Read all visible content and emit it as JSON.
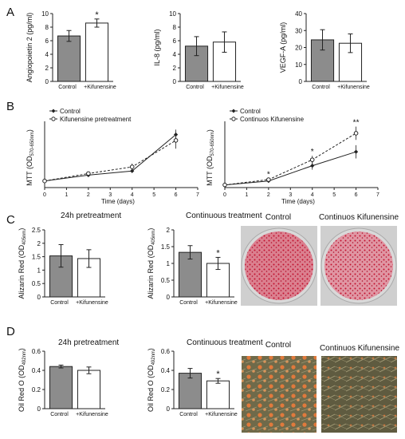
{
  "panels": {
    "A": "A",
    "B": "B",
    "C": "C",
    "D": "D"
  },
  "colors": {
    "control": "#8c8c8c",
    "treated": "#ffffff",
    "axis": "#222222",
    "stain_red": "#c2112f",
    "oil_bg": "#6f6a4a"
  },
  "photos": {
    "C": {
      "left": "Control",
      "right": "Continuos Kifunensine"
    },
    "D": {
      "left": "Control",
      "right": "Continuos Kifunensine"
    }
  },
  "chart_data": [
    {
      "id": "A1",
      "type": "bar",
      "categories": [
        "Control",
        "+Kifunensine"
      ],
      "values": [
        6.7,
        8.6
      ],
      "errors": [
        0.8,
        0.6
      ],
      "ylabel": "Angiopoietin 2 (pg/ml)",
      "ylim": [
        0,
        10
      ],
      "yticks": [
        "0",
        "2",
        "4",
        "6",
        "8",
        "10"
      ],
      "annotations": [
        "",
        "*"
      ]
    },
    {
      "id": "A2",
      "type": "bar",
      "categories": [
        "Control",
        "+Kifunensine"
      ],
      "values": [
        5.2,
        5.8
      ],
      "errors": [
        1.4,
        1.5
      ],
      "ylabel": "IL-8 (pg/ml)",
      "ylim": [
        0,
        10
      ],
      "yticks": [
        "0",
        "2",
        "4",
        "6",
        "8",
        "10"
      ],
      "annotations": [
        "",
        ""
      ]
    },
    {
      "id": "A3",
      "type": "bar",
      "categories": [
        "Control",
        "+Kifunensine"
      ],
      "values": [
        24.5,
        22.5
      ],
      "errors": [
        6,
        5.5
      ],
      "ylabel": "VEGF-A (pg/ml)",
      "ylim": [
        0,
        40
      ],
      "yticks": [
        "0",
        "10",
        "20",
        "30",
        "40"
      ],
      "annotations": [
        "",
        ""
      ]
    },
    {
      "id": "B1",
      "type": "line",
      "xlabel": "Time (days)",
      "ylabel": "MTT (OD570-650nm)",
      "xlim": [
        0,
        7
      ],
      "ylim": [
        0,
        0.4
      ],
      "xticks": [
        "0",
        "1",
        "2",
        "3",
        "4",
        "5",
        "6",
        "7"
      ],
      "series": [
        {
          "name": "Control",
          "x": [
            0,
            2,
            4,
            6
          ],
          "y": [
            0.04,
            0.075,
            0.1,
            0.32
          ],
          "errors": [
            0.005,
            0.01,
            0.01,
            0.03
          ]
        },
        {
          "name": "Kifunensine pretreatment",
          "x": [
            0,
            2,
            4,
            6
          ],
          "y": [
            0.04,
            0.085,
            0.125,
            0.285
          ],
          "errors": [
            0.005,
            0.01,
            0.02,
            0.05
          ]
        }
      ]
    },
    {
      "id": "B2",
      "type": "line",
      "xlabel": "Time (days)",
      "ylabel": "MTT (OD570-650nm)",
      "xlim": [
        0,
        7
      ],
      "ylim": [
        0,
        0.5
      ],
      "xticks": [
        "0",
        "1",
        "2",
        "3",
        "4",
        "5",
        "6",
        "7"
      ],
      "series": [
        {
          "name": "Control",
          "x": [
            0,
            2,
            4,
            6
          ],
          "y": [
            0.02,
            0.05,
            0.165,
            0.27
          ],
          "errors": [
            0.005,
            0.01,
            0.03,
            0.05
          ]
        },
        {
          "name": "Continuos Kifunensine",
          "x": [
            0,
            2,
            4,
            6
          ],
          "y": [
            0.02,
            0.06,
            0.21,
            0.41
          ],
          "errors": [
            0.005,
            0.01,
            0.03,
            0.05
          ]
        }
      ],
      "annotations": [
        {
          "x": 2,
          "text": "*"
        },
        {
          "x": 4,
          "text": "*"
        },
        {
          "x": 6,
          "text": "**"
        }
      ]
    },
    {
      "id": "C1",
      "type": "bar",
      "title": "24h pretreatment",
      "categories": [
        "Control",
        "+Kifunensine"
      ],
      "values": [
        1.53,
        1.43
      ],
      "errors": [
        0.42,
        0.33
      ],
      "ylabel": "Alizarin Red (OD405nm)",
      "ylim": [
        0,
        2.5
      ],
      "yticks": [
        "0",
        "0.5",
        "1",
        "1.5",
        "2",
        "2.5"
      ],
      "annotations": [
        "",
        ""
      ]
    },
    {
      "id": "C2",
      "type": "bar",
      "title": "Continuous treatment",
      "categories": [
        "Control",
        "+Kifunensine"
      ],
      "values": [
        1.33,
        1.0
      ],
      "errors": [
        0.2,
        0.18
      ],
      "ylabel": "Alizarin Red (OD405nm)",
      "ylim": [
        0,
        2
      ],
      "yticks": [
        "0",
        "0.5",
        "1",
        "1.5",
        "2"
      ],
      "annotations": [
        "",
        "*"
      ]
    },
    {
      "id": "D1",
      "type": "bar",
      "title": "24h pretreatment",
      "categories": [
        "Control",
        "+Kifunensine"
      ],
      "values": [
        0.44,
        0.4
      ],
      "errors": [
        0.015,
        0.035
      ],
      "ylabel": "Oil Red O (OD492nm)",
      "ylim": [
        0,
        0.6
      ],
      "yticks": [
        "0",
        "0.2",
        "0.4",
        "0.6"
      ],
      "annotations": [
        "",
        ""
      ]
    },
    {
      "id": "D2",
      "type": "bar",
      "title": "Continuous treatment",
      "categories": [
        "Control",
        "+Kifunensine"
      ],
      "values": [
        0.37,
        0.29
      ],
      "errors": [
        0.05,
        0.025
      ],
      "ylabel": "Oil Red O (OD492nm)",
      "ylim": [
        0,
        0.6
      ],
      "yticks": [
        "0",
        "0.2",
        "0.4",
        "0.6"
      ],
      "annotations": [
        "",
        "*"
      ]
    }
  ]
}
